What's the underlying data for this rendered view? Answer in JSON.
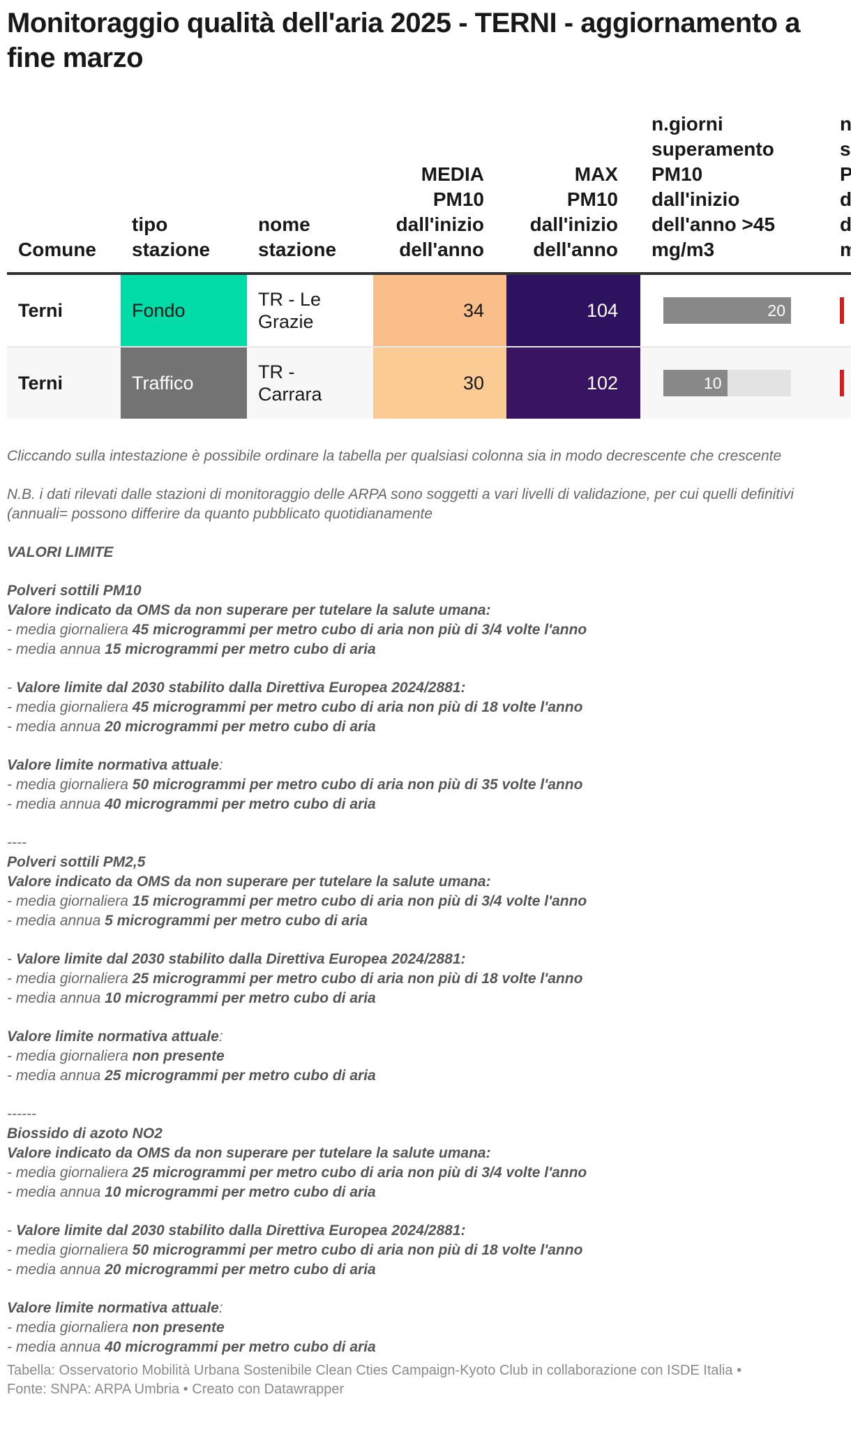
{
  "title": "Monitoraggio qualità dell'aria 2025 - TERNI - aggiornamento a fine marzo",
  "table": {
    "headers": [
      [
        "Comune"
      ],
      [
        "tipo",
        "stazione"
      ],
      [
        "nome",
        "stazione"
      ],
      [
        "MEDIA",
        "PM10",
        "dall'inizio",
        "dell'anno"
      ],
      [
        "MAX",
        "PM10",
        "dall'inizio",
        "dell'anno"
      ],
      [
        "n.giorni",
        "superamento",
        "PM10",
        "dall'inizio",
        "dell'anno >45",
        "mg/m3"
      ],
      [
        "n",
        "s",
        "P",
        "d",
        "d",
        "m"
      ]
    ],
    "rows": [
      {
        "comune": "Terni",
        "tipo": "Fondo",
        "tipo_color": "#00dba8",
        "tipo_text_color": "#181818",
        "nome": "TR - Le Grazie",
        "media": "34",
        "media_color": "#f9be89",
        "max": "104",
        "max_color": "#2d1260",
        "giorni": "20",
        "giorni_fraction": 1.0
      },
      {
        "comune": "Terni",
        "tipo": "Traffico",
        "tipo_color": "#737373",
        "tipo_text_color": "#ffffff",
        "nome": "TR - Carrara",
        "media": "30",
        "media_color": "#fbcb94",
        "max": "102",
        "max_color": "#381462",
        "giorni": "10",
        "giorni_fraction": 0.5
      }
    ],
    "last_col_color": "#d11f1f"
  },
  "notes": [
    [
      [
        "Cliccando sulla intestazione è possibile ordinare la tabella per qualsiasi colonna sia in modo decrescente che crescente",
        0
      ]
    ],
    [],
    [
      [
        "N.B. i dati rilevati dalle stazioni di monitoraggio delle ARPA sono soggetti a vari livelli di validazione, per cui quelli definitivi (annuali= possono differire da quanto pubblicato quotidianamente",
        0
      ]
    ],
    [],
    [
      [
        "VALORI LIMITE",
        1
      ]
    ],
    [],
    [
      [
        "Polveri sottili PM10",
        1
      ]
    ],
    [
      [
        "Valore indicato da OMS da non superare per tutelare la salute umana:",
        1
      ]
    ],
    [
      [
        "- media giornaliera ",
        0
      ],
      [
        "45 microgrammi per metro cubo di aria non più di 3/4 volte l'anno",
        1
      ]
    ],
    [
      [
        "- media annua ",
        0
      ],
      [
        "15 microgrammi per metro cubo di aria",
        1
      ]
    ],
    [],
    [
      [
        "- ",
        0
      ],
      [
        "Valore limite dal 2030 stabilito dalla Direttiva Europea 2024/2881:",
        1
      ]
    ],
    [
      [
        "- media giornaliera ",
        0
      ],
      [
        "45 microgrammi per metro cubo di aria non più di 18 volte l'anno",
        1
      ]
    ],
    [
      [
        "- media annua ",
        0
      ],
      [
        "20 microgrammi per metro cubo di aria",
        1
      ]
    ],
    [],
    [
      [
        "Valore limite normativa attuale",
        1
      ],
      [
        ":",
        0
      ]
    ],
    [
      [
        "- media giornaliera ",
        0
      ],
      [
        "50 microgrammi per metro cubo di aria non più di 35 volte l'anno",
        1
      ]
    ],
    [
      [
        "- media annua ",
        0
      ],
      [
        "40 microgrammi per metro cubo di aria",
        1
      ]
    ],
    [],
    [
      [
        "----",
        0
      ]
    ],
    [
      [
        "Polveri sottili PM2,5",
        1
      ]
    ],
    [
      [
        "Valore indicato da OMS da non superare per tutelare la salute umana:",
        1
      ]
    ],
    [
      [
        "- media giornaliera ",
        0
      ],
      [
        "15 microgrammi per metro cubo di aria non più di 3/4 volte l'anno",
        1
      ]
    ],
    [
      [
        "- media annua ",
        0
      ],
      [
        "5 microgrammi per metro cubo di aria",
        1
      ]
    ],
    [],
    [
      [
        "- ",
        0
      ],
      [
        "Valore limite dal 2030 stabilito dalla Direttiva Europea 2024/2881:",
        1
      ]
    ],
    [
      [
        "- media giornaliera ",
        0
      ],
      [
        "25 microgrammi per metro cubo di aria non più di 18 volte l'anno",
        1
      ]
    ],
    [
      [
        "- media annua ",
        0
      ],
      [
        "10 microgrammi per metro cubo di aria",
        1
      ]
    ],
    [],
    [
      [
        "Valore limite normativa attuale",
        1
      ],
      [
        ":",
        0
      ]
    ],
    [
      [
        "- media giornaliera ",
        0
      ],
      [
        "non presente",
        1
      ]
    ],
    [
      [
        "- media annua ",
        0
      ],
      [
        "25 microgrammi per metro cubo di aria",
        1
      ]
    ],
    [],
    [
      [
        "------",
        0
      ]
    ],
    [
      [
        "Biossido di azoto NO2",
        1
      ]
    ],
    [
      [
        "Valore indicato da OMS da non superare per tutelare la salute umana:",
        1
      ]
    ],
    [
      [
        "- media giornaliera ",
        0
      ],
      [
        "25 microgrammi per metro cubo di aria non più di 3/4 volte l'anno",
        1
      ]
    ],
    [
      [
        "- media annua ",
        0
      ],
      [
        "10 microgrammi per metro cubo di aria",
        1
      ]
    ],
    [],
    [
      [
        "- ",
        0
      ],
      [
        "Valore limite dal 2030 stabilito dalla Direttiva Europea 2024/2881:",
        1
      ]
    ],
    [
      [
        "- media giornaliera ",
        0
      ],
      [
        "50 microgrammi per metro cubo di aria non più di 18 volte l'anno",
        1
      ]
    ],
    [
      [
        "- media annua ",
        0
      ],
      [
        "20 microgrammi per metro cubo di aria",
        1
      ]
    ],
    [],
    [
      [
        "Valore limite normativa attuale",
        1
      ],
      [
        ":",
        0
      ]
    ],
    [
      [
        "- media giornaliera ",
        0
      ],
      [
        "non presente",
        1
      ]
    ],
    [
      [
        "- media annua ",
        0
      ],
      [
        "40 microgrammi per metro cubo di aria",
        1
      ]
    ]
  ],
  "footer": {
    "line1": "Tabella: Osservatorio Mobilità Urbana Sostenibile Clean Cties Campaign-Kyoto Club in collaborazione con ISDE Italia •",
    "line2": "Fonte: SNPA: ARPA Umbria • Creato con Datawrapper"
  }
}
